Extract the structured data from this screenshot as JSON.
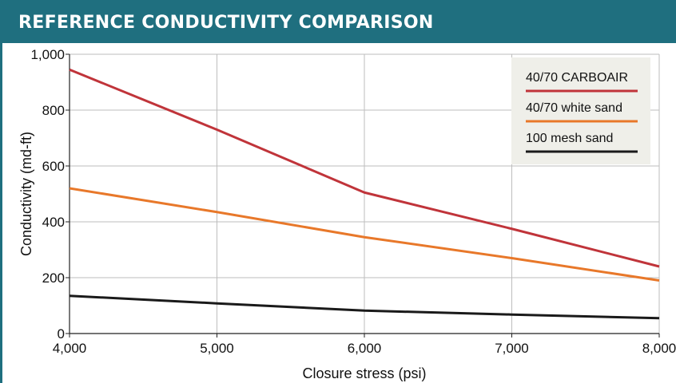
{
  "header": {
    "title": "REFERENCE CONDUCTIVITY COMPARISON"
  },
  "colors": {
    "header_bg": "#1f6f7f",
    "grid": "#bdbdbd",
    "legend_bg": "#efefe9"
  },
  "chart_data": {
    "type": "line",
    "title": "REFERENCE CONDUCTIVITY COMPARISON",
    "xlabel": "Closure stress (psi)",
    "ylabel": "Conductivity (md-ft)",
    "xlim": [
      4000,
      8000
    ],
    "ylim": [
      0,
      1000
    ],
    "x_ticks": [
      4000,
      5000,
      6000,
      7000,
      8000
    ],
    "x_tick_labels": [
      "4,000",
      "5,000",
      "6,000",
      "7,000",
      "8,000"
    ],
    "y_ticks": [
      0,
      200,
      400,
      600,
      800,
      1000
    ],
    "y_tick_labels": [
      "0",
      "200",
      "400",
      "600",
      "800",
      "1,000"
    ],
    "grid": true,
    "legend_position": "top-right",
    "series": [
      {
        "name": "40/70 CARBOAIR",
        "color": "#c0343a",
        "x": [
          4000,
          5000,
          6000,
          7000,
          8000
        ],
        "y": [
          945,
          730,
          505,
          375,
          240
        ]
      },
      {
        "name": "40/70 white sand",
        "color": "#e8782a",
        "x": [
          4000,
          5000,
          6000,
          7000,
          8000
        ],
        "y": [
          520,
          435,
          345,
          270,
          190
        ]
      },
      {
        "name": "100 mesh sand",
        "color": "#1a1a1a",
        "x": [
          4000,
          5000,
          6000,
          7000,
          8000
        ],
        "y": [
          135,
          108,
          82,
          68,
          55
        ]
      }
    ]
  }
}
